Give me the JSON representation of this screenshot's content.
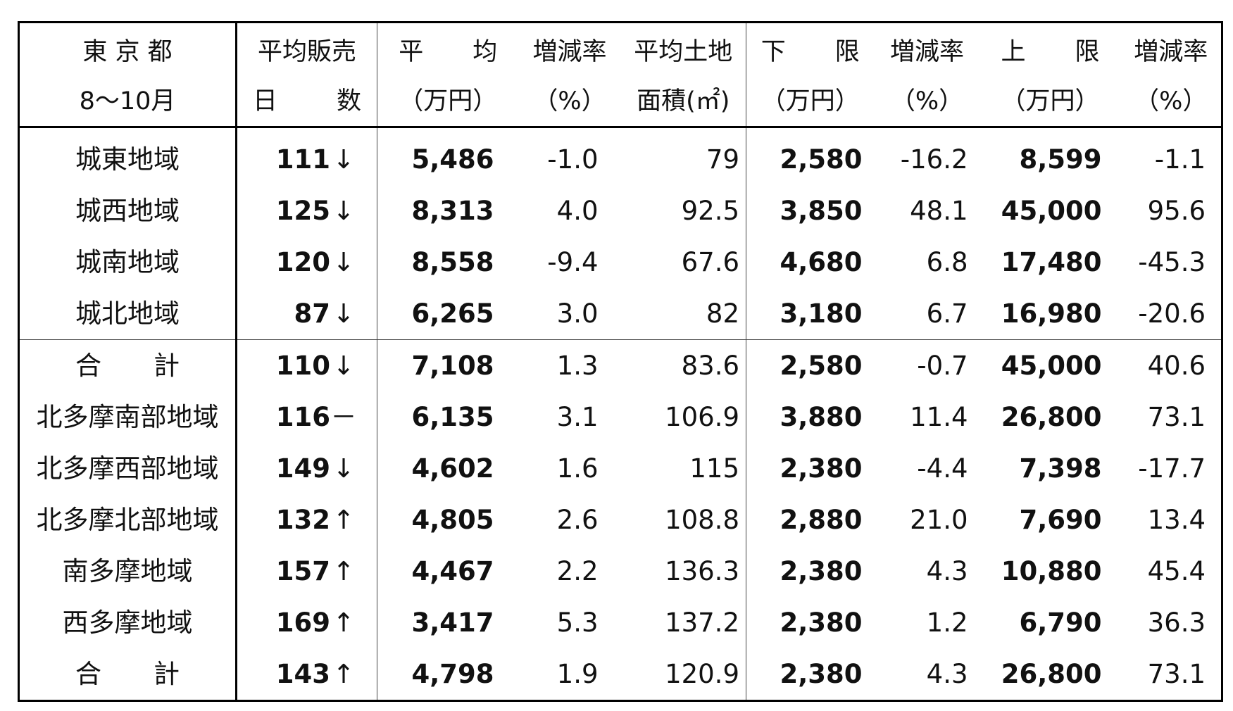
{
  "header": {
    "row1": [
      "東 京 都",
      "平均販売",
      "平　　均",
      "増減率",
      "平均土地",
      "下　　限",
      "増減率",
      "上　　限",
      "増減率"
    ],
    "row2": [
      "8～10月",
      "日　　　数",
      "（万円）",
      "（%）",
      "面積(㎡)",
      "（万円）",
      "（%）",
      "（万円）",
      "（%）"
    ]
  },
  "rows": [
    {
      "area": "城東地域",
      "days": "111",
      "trend": "↓",
      "avg": "5,486",
      "avg_rate": "-1.0",
      "land": "79",
      "low": "2,580",
      "low_rate": "-16.2",
      "high": "8,599",
      "high_rate": "-1.1"
    },
    {
      "area": "城西地域",
      "days": "125",
      "trend": "↓",
      "avg": "8,313",
      "avg_rate": "4.0",
      "land": "92.5",
      "low": "3,850",
      "low_rate": "48.1",
      "high": "45,000",
      "high_rate": "95.6"
    },
    {
      "area": "城南地域",
      "days": "120",
      "trend": "↓",
      "avg": "8,558",
      "avg_rate": "-9.4",
      "land": "67.6",
      "low": "4,680",
      "low_rate": "6.8",
      "high": "17,480",
      "high_rate": "-45.3"
    },
    {
      "area": "城北地域",
      "days": "87",
      "trend": "↓",
      "avg": "6,265",
      "avg_rate": "3.0",
      "land": "82",
      "low": "3,180",
      "low_rate": "6.7",
      "high": "16,980",
      "high_rate": "-20.6"
    },
    {
      "area": "合　　計",
      "days": "110",
      "trend": "↓",
      "avg": "7,108",
      "avg_rate": "1.3",
      "land": "83.6",
      "low": "2,580",
      "low_rate": "-0.7",
      "high": "45,000",
      "high_rate": "40.6"
    },
    {
      "area": "北多摩南部地域",
      "days": "116",
      "trend": "－",
      "avg": "6,135",
      "avg_rate": "3.1",
      "land": "106.9",
      "low": "3,880",
      "low_rate": "11.4",
      "high": "26,800",
      "high_rate": "73.1"
    },
    {
      "area": "北多摩西部地域",
      "days": "149",
      "trend": "↓",
      "avg": "4,602",
      "avg_rate": "1.6",
      "land": "115",
      "low": "2,380",
      "low_rate": "-4.4",
      "high": "7,398",
      "high_rate": "-17.7"
    },
    {
      "area": "北多摩北部地域",
      "days": "132",
      "trend": "↑",
      "avg": "4,805",
      "avg_rate": "2.6",
      "land": "108.8",
      "low": "2,880",
      "low_rate": "21.0",
      "high": "7,690",
      "high_rate": "13.4"
    },
    {
      "area": "南多摩地域",
      "days": "157",
      "trend": "↑",
      "avg": "4,467",
      "avg_rate": "2.2",
      "land": "136.3",
      "low": "2,380",
      "low_rate": "4.3",
      "high": "10,880",
      "high_rate": "45.4"
    },
    {
      "area": "西多摩地域",
      "days": "169",
      "trend": "↑",
      "avg": "3,417",
      "avg_rate": "5.3",
      "land": "137.2",
      "low": "2,380",
      "low_rate": "1.2",
      "high": "6,790",
      "high_rate": "36.3"
    },
    {
      "area": "合　　計",
      "days": "143",
      "trend": "↑",
      "avg": "4,798",
      "avg_rate": "1.9",
      "land": "120.9",
      "low": "2,380",
      "low_rate": "4.3",
      "high": "26,800",
      "high_rate": "73.1"
    }
  ]
}
